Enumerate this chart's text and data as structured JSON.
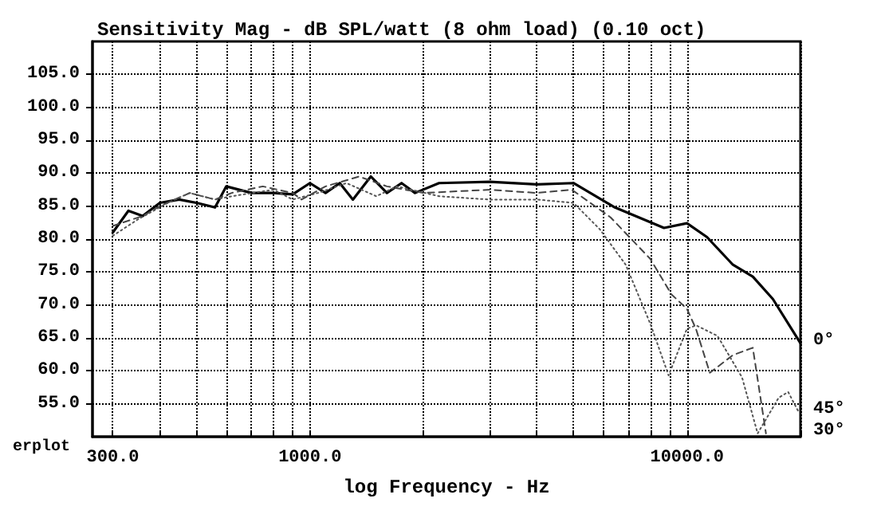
{
  "chart_data": {
    "type": "line",
    "title": "Sensitivity Mag - dB SPL/watt (8 ohm load) (0.10 oct)",
    "xlabel": "log Frequency - Hz",
    "annotations": [
      "erplot"
    ],
    "log": "x",
    "grid": true,
    "xlim": [
      265,
      20000
    ],
    "ylim": [
      50,
      110
    ],
    "xticks": [
      {
        "value": 300,
        "label": "300.0"
      },
      {
        "value": 400,
        "label": null
      },
      {
        "value": 500,
        "label": null
      },
      {
        "value": 600,
        "label": null
      },
      {
        "value": 700,
        "label": null
      },
      {
        "value": 800,
        "label": null
      },
      {
        "value": 900,
        "label": null
      },
      {
        "value": 1000,
        "label": "1000.0"
      },
      {
        "value": 2000,
        "label": null
      },
      {
        "value": 3000,
        "label": null
      },
      {
        "value": 4000,
        "label": null
      },
      {
        "value": 5000,
        "label": null
      },
      {
        "value": 6000,
        "label": null
      },
      {
        "value": 7000,
        "label": null
      },
      {
        "value": 8000,
        "label": null
      },
      {
        "value": 9000,
        "label": null
      },
      {
        "value": 10000,
        "label": "10000.0"
      },
      {
        "value": 20000,
        "label": null
      }
    ],
    "yticks": [
      {
        "value": 55,
        "label": "55.0"
      },
      {
        "value": 60,
        "label": "60.0"
      },
      {
        "value": 65,
        "label": "65.0"
      },
      {
        "value": 70,
        "label": "70.0"
      },
      {
        "value": 75,
        "label": "75.0"
      },
      {
        "value": 80,
        "label": "80.0"
      },
      {
        "value": 85,
        "label": "85.0"
      },
      {
        "value": 90,
        "label": "90.0"
      },
      {
        "value": 95,
        "label": "95.0"
      },
      {
        "value": 100,
        "label": "100.0"
      },
      {
        "value": 105,
        "label": "105.0"
      }
    ],
    "series": [
      {
        "name": "0°",
        "color": "#000000",
        "line_style": "solid",
        "x": [
          300,
          330,
          360,
          400,
          450,
          500,
          560,
          600,
          700,
          800,
          900,
          1000,
          1100,
          1200,
          1300,
          1450,
          1600,
          1750,
          1900,
          2200,
          3000,
          4000,
          5000,
          6440,
          8690,
          10000,
          11300,
          13240,
          14950,
          16900,
          20000
        ],
        "values": [
          81,
          84.3,
          83.5,
          85.5,
          86,
          85.5,
          84.8,
          88,
          87,
          87,
          86.8,
          88.5,
          87,
          88.5,
          86,
          89.5,
          87,
          88.5,
          87,
          88.5,
          88.7,
          88.3,
          88.5,
          84.8,
          81.7,
          82.4,
          80.3,
          76.1,
          74.3,
          70.9,
          64.2
        ]
      },
      {
        "name": "30°",
        "color": "#444444",
        "line_style": "dashed",
        "x": [
          300,
          360,
          400,
          480,
          560,
          620,
          750,
          900,
          950,
          1100,
          1350,
          1600,
          2000,
          3000,
          4000,
          4950,
          6270,
          7990,
          9100,
          10000,
          10560,
          11500,
          13250,
          14950,
          16200
        ],
        "values": [
          82,
          83.5,
          85,
          87,
          86,
          87,
          88,
          87,
          86,
          88,
          89.5,
          88,
          87,
          87.5,
          87,
          87.5,
          83.3,
          77,
          71.6,
          69.4,
          66.4,
          59.7,
          62.4,
          63.5,
          50.5
        ]
      },
      {
        "name": "45°",
        "color": "#555555",
        "line_style": "dotted",
        "x": [
          300,
          350,
          420,
          480,
          560,
          620,
          800,
          900,
          1050,
          1250,
          1500,
          1700,
          2200,
          3000,
          4000,
          5000,
          5870,
          6880,
          8000,
          8940,
          10000,
          10580,
          12050,
          14000,
          15400,
          17500,
          18550,
          19800
        ],
        "values": [
          80.5,
          83,
          85.5,
          87,
          86,
          86.5,
          87.5,
          86,
          87,
          88.5,
          86.5,
          88,
          86.5,
          86,
          86,
          85.5,
          81.5,
          76.1,
          67.1,
          59.3,
          66.4,
          66.9,
          65.3,
          59,
          50.5,
          55.9,
          56.8,
          53.7
        ]
      }
    ]
  }
}
